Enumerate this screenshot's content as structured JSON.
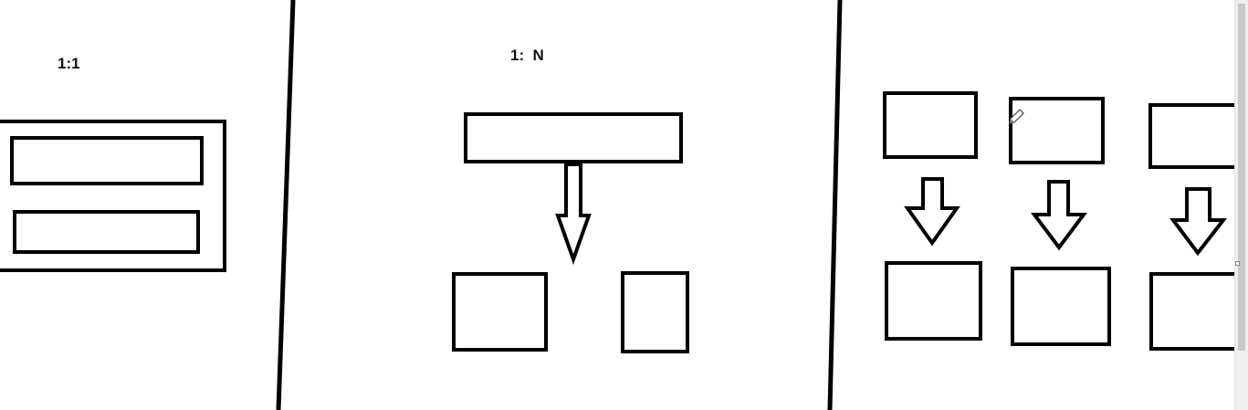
{
  "labels": {
    "one_to_one": "1:1",
    "one_to_n": "1:  N"
  },
  "colors": {
    "stroke": "#000000",
    "background": "#ffffff"
  },
  "icons": {
    "cursor": "pencil-icon"
  }
}
